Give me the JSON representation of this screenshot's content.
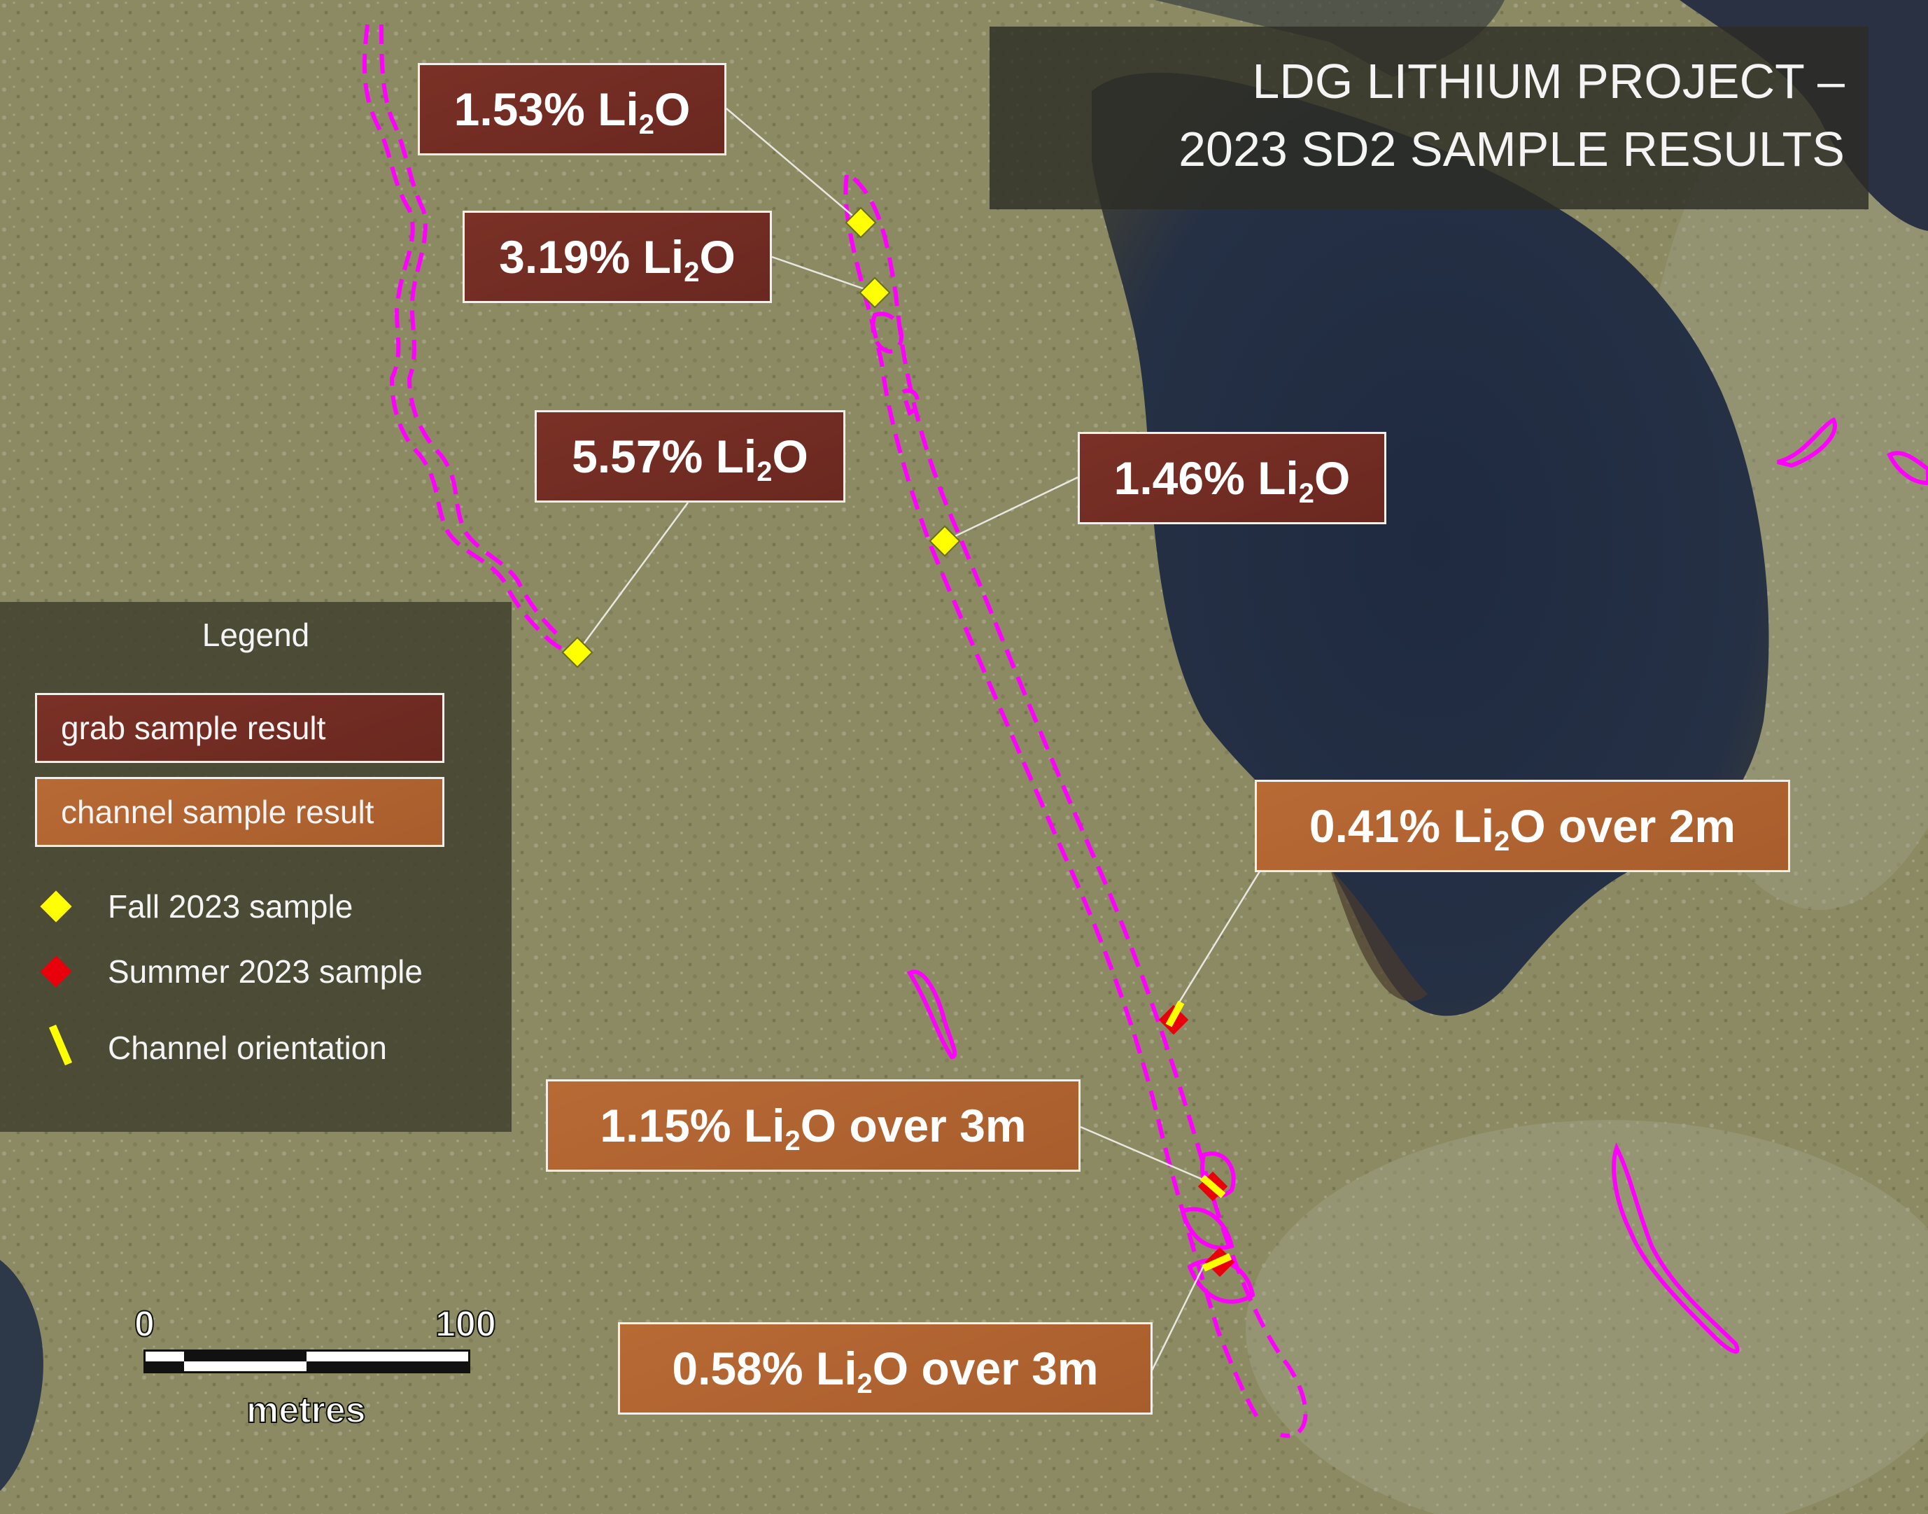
{
  "title": {
    "line1": "LDG LITHIUM PROJECT –",
    "line2": "2023 SD2  SAMPLE RESULTS"
  },
  "labels": [
    {
      "id": "r1",
      "type": "grab",
      "value": "1.53%",
      "element": "Li",
      "subscript": "2",
      "suffix": "O"
    },
    {
      "id": "r2",
      "type": "grab",
      "value": "3.19%",
      "element": "Li",
      "subscript": "2",
      "suffix": "O"
    },
    {
      "id": "r3",
      "type": "grab",
      "value": "5.57%",
      "element": "Li",
      "subscript": "2",
      "suffix": "O"
    },
    {
      "id": "r4",
      "type": "grab",
      "value": "1.46%",
      "element": "Li",
      "subscript": "2",
      "suffix": "O"
    },
    {
      "id": "r5",
      "type": "channel",
      "value": "0.41%",
      "element": "Li",
      "subscript": "2",
      "suffix": "O over 2m"
    },
    {
      "id": "r6",
      "type": "channel",
      "value": "1.15%",
      "element": "Li",
      "subscript": "2",
      "suffix": "O over 3m"
    },
    {
      "id": "r7",
      "type": "channel",
      "value": "0.58%",
      "element": "Li",
      "subscript": "2",
      "suffix": "O over 3m"
    }
  ],
  "legend": {
    "title": "Legend",
    "grab_label": "grab sample result",
    "channel_label": "channel sample result",
    "fall_label": "Fall 2023 sample",
    "summer_label": "Summer 2023 sample",
    "channel_orientation_label": "Channel orientation"
  },
  "scale": {
    "start": "0",
    "end": "100",
    "unit": "metres"
  },
  "colors": {
    "grab_box": "#6f2b22",
    "channel_box": "#b0622f",
    "fall_marker": "#ffff00",
    "summer_marker": "#e8000b",
    "outcrop_outline": "#ff00ff",
    "channel_line": "#ffff00"
  }
}
